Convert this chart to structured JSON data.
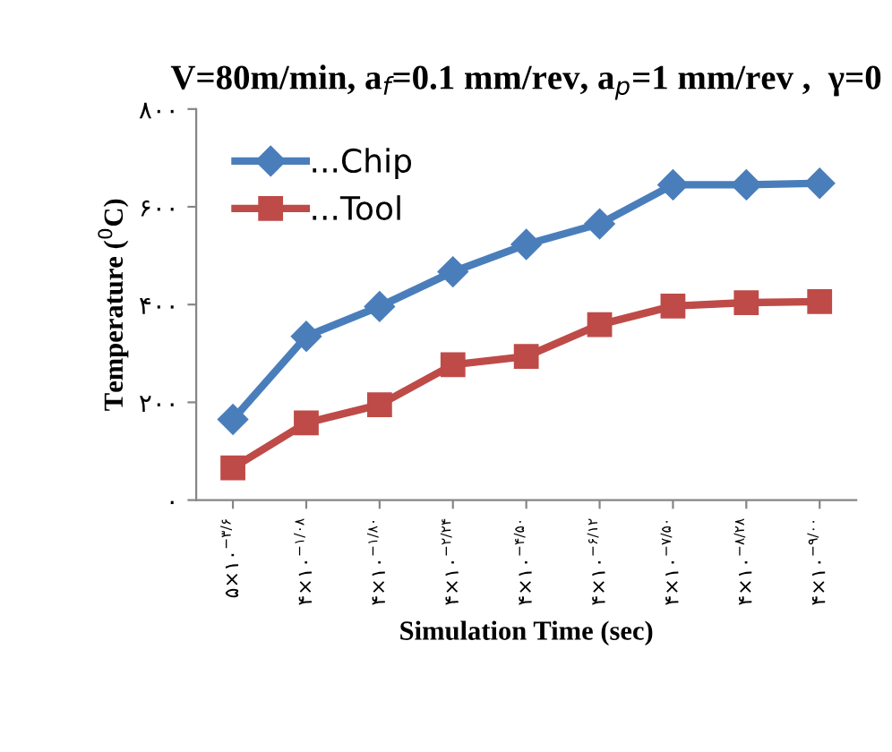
{
  "chart_data": {
    "type": "line",
    "title": "V=80m/min, a$_{f}$=0.1 mm/rev, a$_{p}$=1 mm/rev ,  γ=0",
    "xlabel": "Simulation Time (sec)",
    "ylabel": "Temperature ($^{0}$C)",
    "categories": [
      "۵×۱۰$^{−۳/۶}$",
      "۴×۱۰$^{−۱/۰۸}$",
      "۴×۱۰$^{−۱/۸۰}$",
      "۴×۱۰$^{−۲/۲۴}$",
      "۴×۱۰$^{−۴/۵۰}$",
      "۴×۱۰$^{−۶/۱۲}$",
      "۴×۱۰$^{−۷/۵۰}$",
      "۴×۱۰$^{−۸/۲۸}$",
      "۴×۱۰$^{−۹/۰۰}$"
    ],
    "series": [
      {
        "name": "...Chip",
        "color": "#4a7ebb",
        "marker": "diamond",
        "values": [
          165,
          335,
          396,
          467,
          523,
          565,
          645,
          645,
          648
        ]
      },
      {
        "name": "...Tool",
        "color": "#be4b48",
        "marker": "square",
        "values": [
          66,
          158,
          195,
          277,
          294,
          359,
          397,
          404,
          406
        ]
      }
    ],
    "ylim": [
      0,
      800
    ],
    "yticks": [
      {
        "value": 0,
        "label": "۰"
      },
      {
        "value": 200,
        "label": "۲۰۰"
      },
      {
        "value": 400,
        "label": "۴۰۰"
      },
      {
        "value": 600,
        "label": "۶۰۰"
      },
      {
        "value": 800,
        "label": "۸۰۰"
      }
    ],
    "grid": false,
    "legend": "top left",
    "line_style": "solid"
  }
}
